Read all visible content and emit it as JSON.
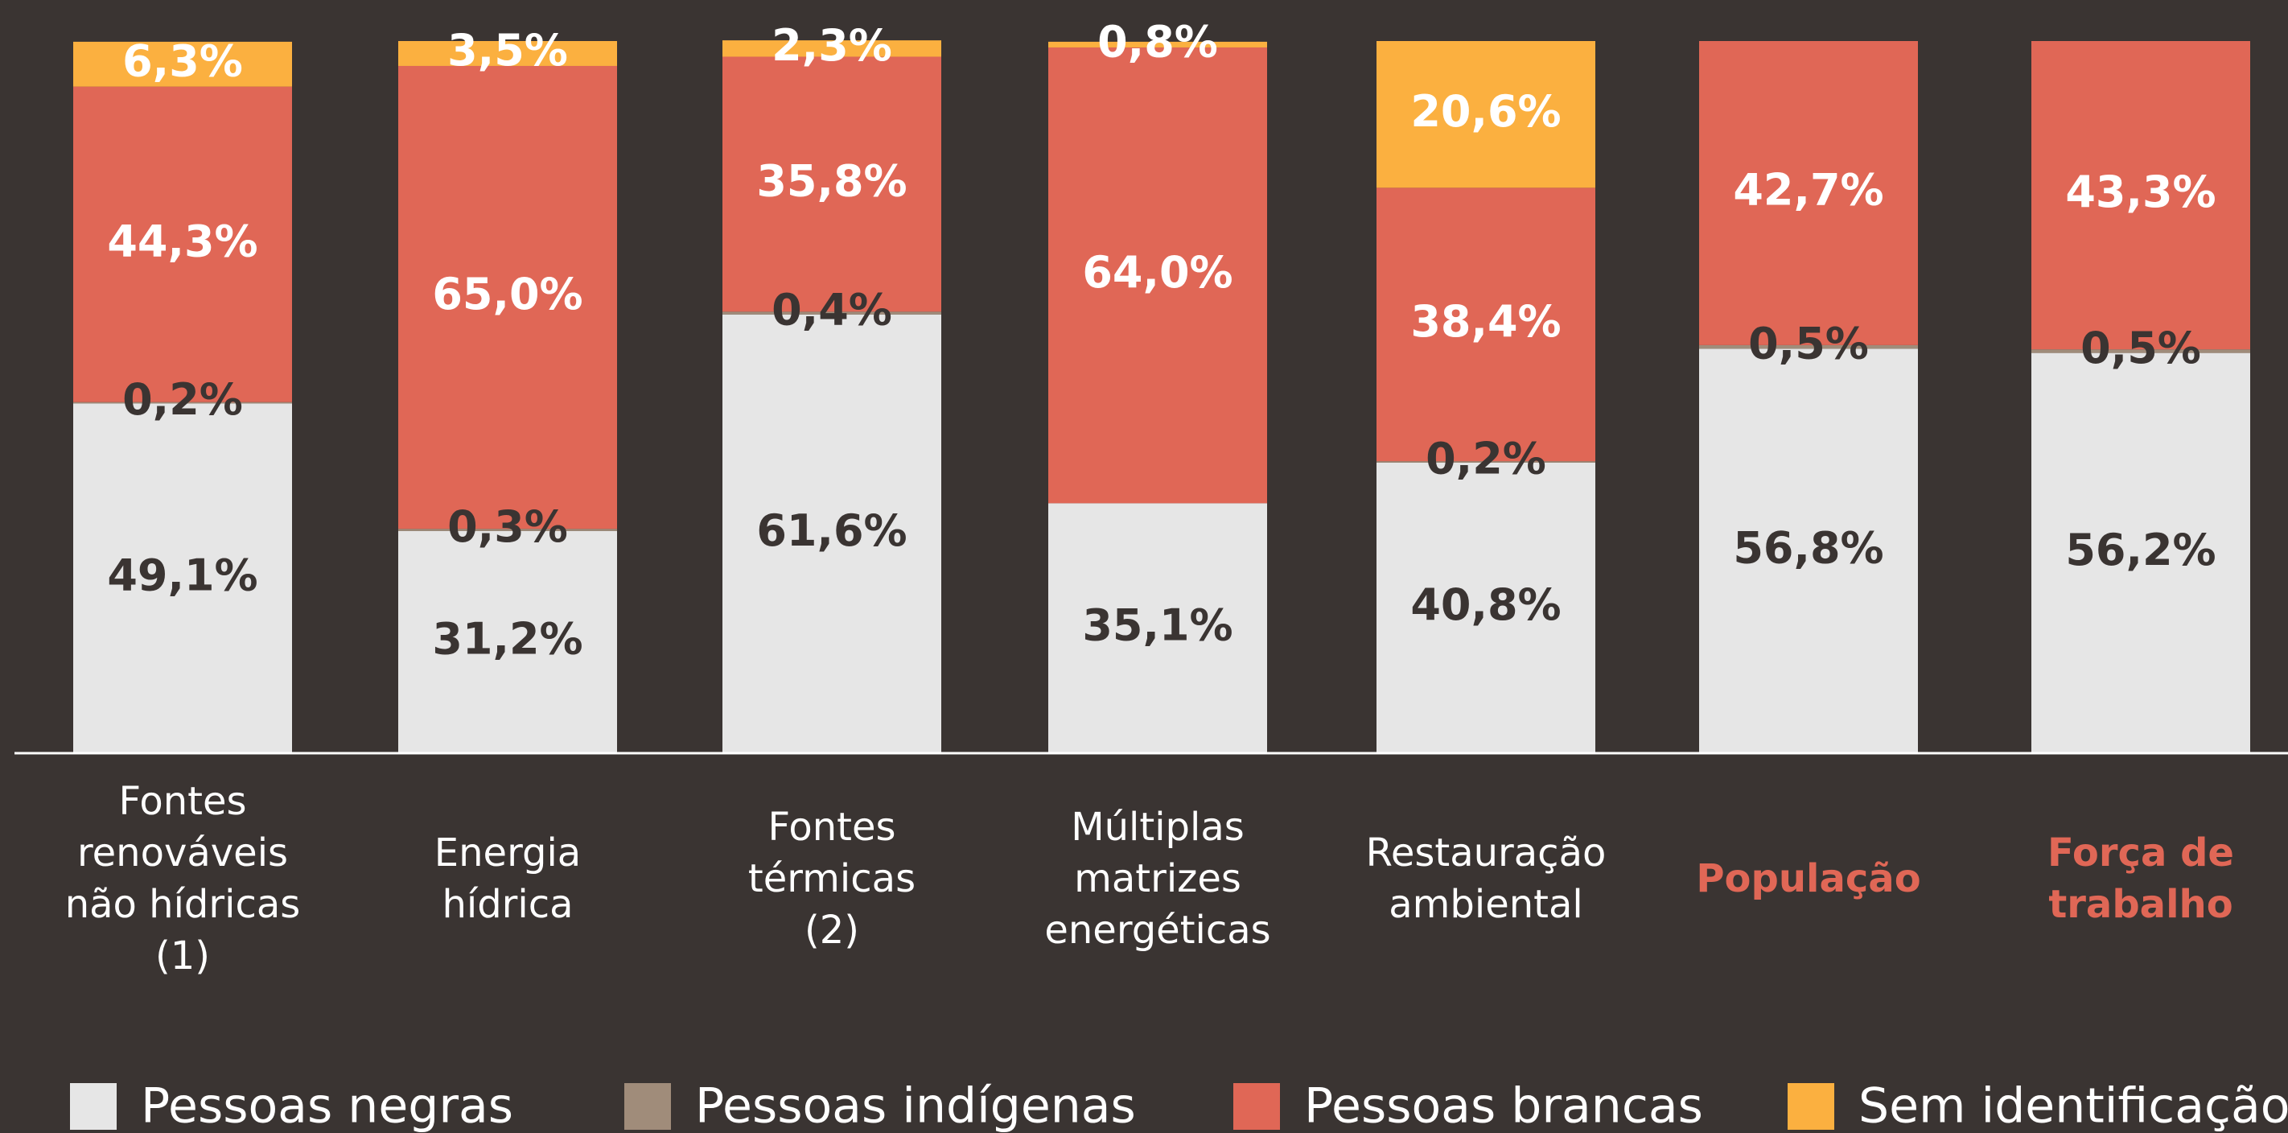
{
  "chart_data": {
    "type": "stacked_bar",
    "categories": [
      "Fontes\nrenováveis\nnão hídricas\n(1)",
      "Energia\nhídrica",
      "Fontes\ntérmicas\n(2)",
      "Múltiplas\nmatrizes\nenergéticas",
      "Restauração\nambiental",
      "População",
      "Força de\ntrabalho"
    ],
    "category_label_colors": [
      "#ffffff",
      "#ffffff",
      "#ffffff",
      "#ffffff",
      "#ffffff",
      "#e06756",
      "#e06756"
    ],
    "ylim": [
      0,
      100
    ],
    "series": [
      {
        "name": "Pessoas negras",
        "color": "#e6e6e6",
        "label_color": "#3a3432",
        "values": [
          49.1,
          31.2,
          61.6,
          35.1,
          40.8,
          56.8,
          56.2
        ],
        "value_labels": [
          "49,1%",
          "31,2%",
          "61,6%",
          "35,1%",
          "40,8%",
          "56,8%",
          "56,2%"
        ]
      },
      {
        "name": "Pessoas indígenas",
        "color": "#a08c7a",
        "label_color": "#3a3432",
        "values": [
          0.2,
          0.3,
          0.4,
          null,
          0.2,
          0.5,
          0.5
        ],
        "value_labels": [
          "0,2%",
          "0,3%",
          "0,4%",
          null,
          "0,2%",
          "0,5%",
          "0,5%"
        ]
      },
      {
        "name": "Pessoas brancas",
        "color": "#e06756",
        "label_color": "#ffffff",
        "values": [
          44.3,
          65.0,
          35.8,
          64.0,
          38.4,
          42.7,
          43.3
        ],
        "value_labels": [
          "44,3%",
          "65,0%",
          "35,8%",
          "64,0%",
          "38,4%",
          "42,7%",
          "43,3%"
        ]
      },
      {
        "name": "Sem identificação",
        "color": "#fbb040",
        "label_color": "#ffffff",
        "values": [
          6.3,
          3.5,
          2.3,
          0.8,
          20.6,
          null,
          null
        ],
        "value_labels": [
          "6,3%",
          "3,5%",
          "2,3%",
          "0,8%",
          "20,6%",
          null,
          null
        ]
      }
    ]
  }
}
